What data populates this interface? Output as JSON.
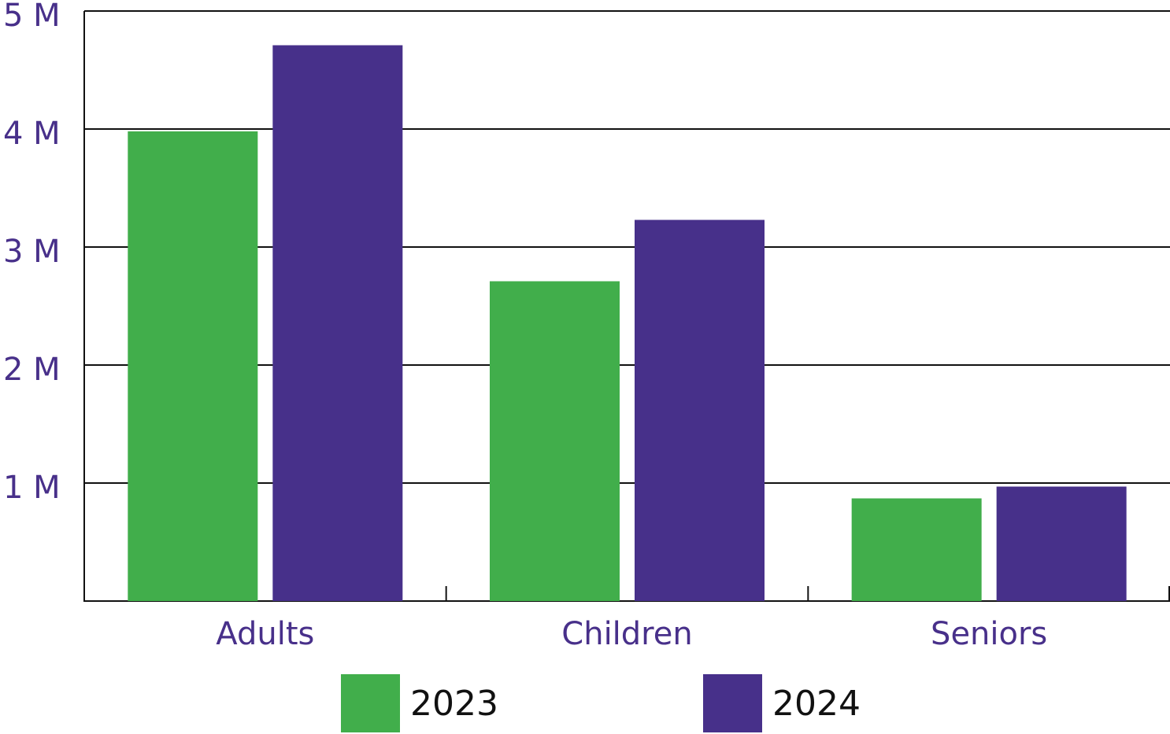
{
  "chart_data": {
    "type": "bar",
    "categories": [
      "Adults",
      "Children",
      "Seniors"
    ],
    "series": [
      {
        "name": "2023",
        "color": "#41ae4b",
        "values": [
          3980000,
          2710000,
          870000
        ]
      },
      {
        "name": "2024",
        "color": "#47308a",
        "values": [
          4710000,
          3230000,
          970000
        ]
      }
    ],
    "ylim": [
      0,
      5000000
    ],
    "yticks": [
      {
        "value": 1000000,
        "label": "1 M"
      },
      {
        "value": 2000000,
        "label": "2 M"
      },
      {
        "value": 3000000,
        "label": "3 M"
      },
      {
        "value": 4000000,
        "label": "4 M"
      },
      {
        "value": 5000000,
        "label": "5 M"
      }
    ],
    "grid": true,
    "legend": "bottom"
  }
}
